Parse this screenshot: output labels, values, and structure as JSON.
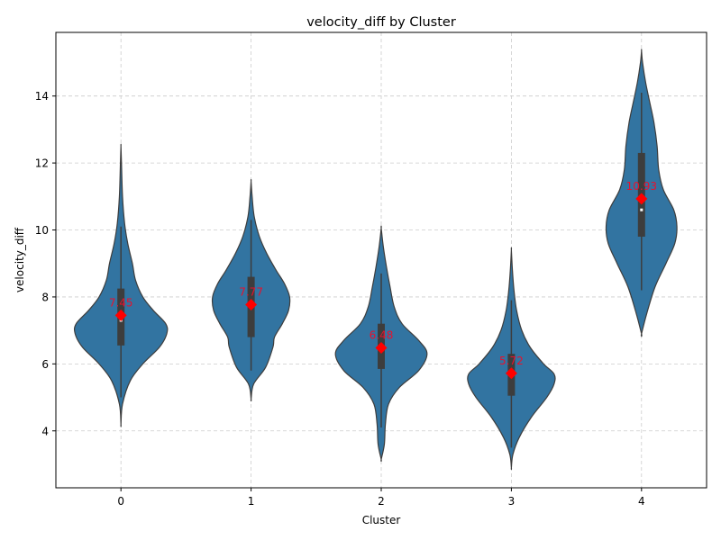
{
  "chart_data": {
    "type": "violin",
    "title": "velocity_diff by Cluster",
    "xlabel": "Cluster",
    "ylabel": "velocity_diff",
    "categories": [
      "0",
      "1",
      "2",
      "3",
      "4"
    ],
    "ylim": [
      2.3,
      15.9
    ],
    "yticks": [
      4,
      6,
      8,
      10,
      12,
      14
    ],
    "grid": true,
    "colors": {
      "violin": "#3274a1",
      "outline": "#3d3d3d",
      "box": "#3d3d3d",
      "mean": "#ff0000",
      "mean_label": "#e8112d"
    },
    "groups": [
      {
        "cluster": "0",
        "mean": 7.45,
        "mean_label": "7.45",
        "min": 4.2,
        "max": 12.5,
        "q1": 6.55,
        "median": 7.3,
        "q3": 8.25,
        "whisker_low": 5.0,
        "whisker_high": 10.1,
        "profile": [
          [
            4.2,
            0.0
          ],
          [
            4.8,
            0.03
          ],
          [
            5.5,
            0.18
          ],
          [
            6.0,
            0.42
          ],
          [
            6.5,
            0.74
          ],
          [
            6.9,
            0.88
          ],
          [
            7.2,
            0.86
          ],
          [
            7.6,
            0.62
          ],
          [
            8.0,
            0.42
          ],
          [
            8.5,
            0.28
          ],
          [
            9.0,
            0.22
          ],
          [
            9.6,
            0.13
          ],
          [
            10.2,
            0.07
          ],
          [
            11.0,
            0.03
          ],
          [
            12.0,
            0.01
          ],
          [
            12.5,
            0.0
          ]
        ]
      },
      {
        "cluster": "1",
        "mean": 7.77,
        "mean_label": "7.77",
        "min": 4.95,
        "max": 11.45,
        "q1": 6.8,
        "median": 7.75,
        "q3": 8.6,
        "whisker_low": 5.8,
        "whisker_high": 10.3,
        "profile": [
          [
            4.95,
            0.0
          ],
          [
            5.4,
            0.05
          ],
          [
            5.9,
            0.28
          ],
          [
            6.5,
            0.42
          ],
          [
            6.8,
            0.45
          ],
          [
            7.2,
            0.6
          ],
          [
            7.6,
            0.72
          ],
          [
            8.0,
            0.74
          ],
          [
            8.4,
            0.64
          ],
          [
            8.8,
            0.48
          ],
          [
            9.3,
            0.3
          ],
          [
            9.8,
            0.16
          ],
          [
            10.4,
            0.06
          ],
          [
            11.0,
            0.02
          ],
          [
            11.45,
            0.0
          ]
        ]
      },
      {
        "cluster": "2",
        "mean": 6.48,
        "mean_label": "6.48",
        "min": 3.15,
        "max": 10.05,
        "q1": 5.85,
        "median": 6.4,
        "q3": 7.2,
        "whisker_low": 4.1,
        "whisker_high": 8.7,
        "profile": [
          [
            3.15,
            0.0
          ],
          [
            3.6,
            0.06
          ],
          [
            4.2,
            0.08
          ],
          [
            4.8,
            0.14
          ],
          [
            5.3,
            0.35
          ],
          [
            5.8,
            0.72
          ],
          [
            6.3,
            0.88
          ],
          [
            6.7,
            0.72
          ],
          [
            7.2,
            0.4
          ],
          [
            7.7,
            0.25
          ],
          [
            8.3,
            0.17
          ],
          [
            8.9,
            0.1
          ],
          [
            9.5,
            0.04
          ],
          [
            10.05,
            0.0
          ]
        ]
      },
      {
        "cluster": "3",
        "mean": 5.72,
        "mean_label": "5.72",
        "min": 2.9,
        "max": 9.4,
        "q1": 5.05,
        "median": 5.7,
        "q3": 6.3,
        "whisker_low": 3.5,
        "whisker_high": 7.9,
        "profile": [
          [
            2.9,
            0.0
          ],
          [
            3.3,
            0.03
          ],
          [
            3.8,
            0.15
          ],
          [
            4.4,
            0.38
          ],
          [
            5.0,
            0.68
          ],
          [
            5.4,
            0.82
          ],
          [
            5.7,
            0.82
          ],
          [
            6.0,
            0.62
          ],
          [
            6.5,
            0.36
          ],
          [
            7.0,
            0.2
          ],
          [
            7.6,
            0.1
          ],
          [
            8.2,
            0.05
          ],
          [
            8.8,
            0.02
          ],
          [
            9.4,
            0.0
          ]
        ]
      },
      {
        "cluster": "4",
        "mean": 10.93,
        "mean_label": "10.93",
        "min": 6.9,
        "max": 15.35,
        "q1": 9.8,
        "median": 10.6,
        "q3": 12.3,
        "whisker_low": 8.2,
        "whisker_high": 14.1,
        "profile": [
          [
            6.9,
            0.0
          ],
          [
            7.5,
            0.1
          ],
          [
            8.3,
            0.26
          ],
          [
            9.0,
            0.47
          ],
          [
            9.6,
            0.64
          ],
          [
            10.1,
            0.68
          ],
          [
            10.6,
            0.62
          ],
          [
            11.2,
            0.42
          ],
          [
            11.8,
            0.33
          ],
          [
            12.5,
            0.3
          ],
          [
            13.2,
            0.24
          ],
          [
            13.8,
            0.16
          ],
          [
            14.4,
            0.08
          ],
          [
            15.0,
            0.02
          ],
          [
            15.35,
            0.0
          ]
        ]
      }
    ]
  }
}
